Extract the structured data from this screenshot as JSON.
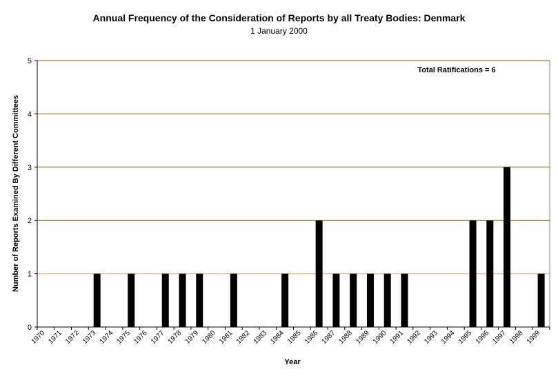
{
  "chart_data": {
    "type": "bar",
    "title": "Annual Frequency of the Consideration of Reports by all Treaty Bodies: Denmark",
    "subtitle": "1 January 2000",
    "xlabel": "Year",
    "ylabel": "Number of Reports Examined By Different Committees",
    "annotation": "Total Ratifications = 6",
    "ylim": [
      0,
      5
    ],
    "yticks": [
      "0",
      "1",
      "2",
      "3",
      "4",
      "5"
    ],
    "categories": [
      "1970",
      "1971",
      "1972",
      "1973",
      "1974",
      "1975",
      "1976",
      "1977",
      "1978",
      "1979",
      "1980",
      "1981",
      "1982",
      "1983",
      "1984",
      "1985",
      "1986",
      "1987",
      "1988",
      "1989",
      "1990",
      "1991",
      "1992",
      "1993",
      "1994",
      "1995",
      "1996",
      "1997",
      "1998",
      "1999"
    ],
    "values": [
      0,
      0,
      0,
      1,
      0,
      1,
      0,
      1,
      1,
      1,
      0,
      1,
      0,
      0,
      1,
      0,
      2,
      1,
      1,
      1,
      1,
      1,
      0,
      0,
      0,
      2,
      2,
      3,
      0,
      1
    ],
    "grid": true,
    "colors": {
      "bar": "#000000",
      "gridline": "#7a5a00",
      "refline": "#e8a060",
      "axis": "#000000"
    }
  }
}
